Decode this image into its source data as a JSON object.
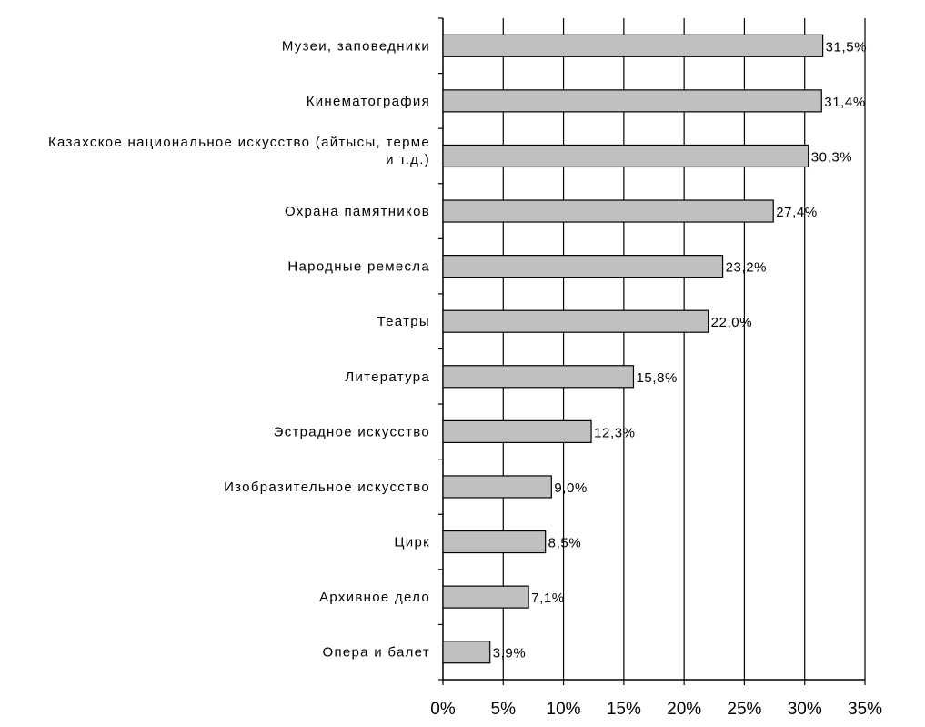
{
  "chart_data": {
    "type": "bar",
    "orientation": "horizontal",
    "title": "",
    "xlabel": "",
    "ylabel": "",
    "categories": [
      [
        "Музеи, заповедники"
      ],
      [
        "Кинематография"
      ],
      [
        "Казахское национальное искусство (айтысы, терме",
        "и т.д.)"
      ],
      [
        "Охрана памятников"
      ],
      [
        "Народные ремесла"
      ],
      [
        "Театры"
      ],
      [
        "Литература"
      ],
      [
        "Эстрадное искусство"
      ],
      [
        "Изобразительное искусство"
      ],
      [
        "Цирк"
      ],
      [
        "Архивное дело"
      ],
      [
        "Опера и балет"
      ]
    ],
    "values": [
      31.5,
      31.4,
      30.3,
      27.4,
      23.2,
      22.0,
      15.8,
      12.3,
      9.0,
      8.5,
      7.1,
      3.9
    ],
    "value_labels": [
      "31,5%",
      "31,4%",
      "30,3%",
      "27,4%",
      "23,2%",
      "22,0%",
      "15,8%",
      "12,3%",
      "9,0%",
      "8,5%",
      "7,1%",
      "3,9%"
    ],
    "xlim": [
      0,
      35
    ],
    "x_ticks": [
      0,
      5,
      10,
      15,
      20,
      25,
      30,
      35
    ],
    "x_tick_labels": [
      "0%",
      "5%",
      "10%",
      "15%",
      "20%",
      "25%",
      "30%",
      "35%"
    ],
    "grid": "vertical",
    "legend": "none",
    "colors": {
      "bar_fill": "#c0c0c0",
      "bar_stroke": "#000000",
      "grid": "#000000",
      "background": "#ffffff"
    }
  }
}
